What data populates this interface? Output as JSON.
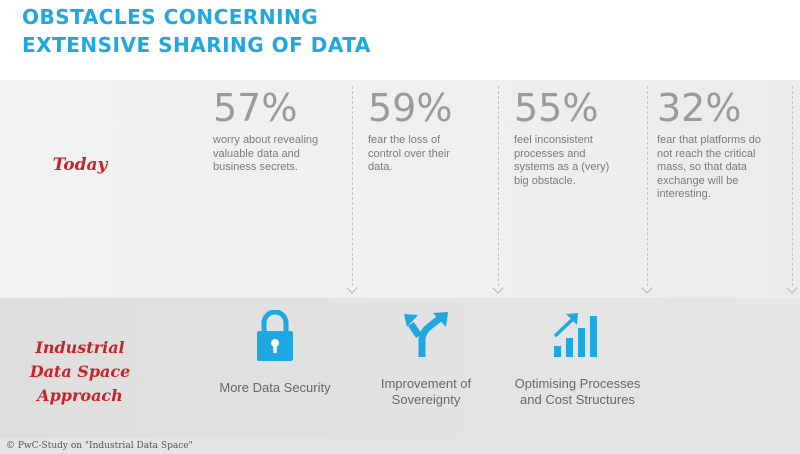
{
  "title": {
    "line1": "OBSTACLES CONCERNING",
    "line2": "EXTENSIVE SHARING OF DATA"
  },
  "rows": {
    "today": "Today",
    "approach": [
      "Industrial",
      "Data Space",
      "Approach"
    ]
  },
  "stats": [
    {
      "percent": "57%",
      "lines": [
        "worry about revealing",
        "valuable data and",
        "business secrets."
      ]
    },
    {
      "percent": "59%",
      "lines": [
        "fear the loss of",
        "control over their",
        "data."
      ]
    },
    {
      "percent": "55%",
      "lines": [
        "feel inconsistent",
        "processes and",
        "systems as a (very)",
        "big obstacle."
      ]
    },
    {
      "percent": "32%",
      "lines": [
        "fear that platforms do",
        "not reach the critical",
        "mass, so that data",
        "exchange will be",
        "interesting."
      ]
    }
  ],
  "features": [
    {
      "icon": "lock-icon",
      "lines": [
        "More Data Security"
      ]
    },
    {
      "icon": "fork-arrows-icon",
      "lines": [
        "Improvement of",
        "Sovereignty"
      ]
    },
    {
      "icon": "growth-chart-icon",
      "lines": [
        "Optimising Processes",
        "and Cost Structures"
      ]
    }
  ],
  "credit": "© PwC-Study on \"Industrial Data Space\"",
  "colors": {
    "title": "#1ea7e0",
    "label": "#c0262a",
    "icon": "#1ea7e0",
    "percent": "#9a9a9a"
  }
}
